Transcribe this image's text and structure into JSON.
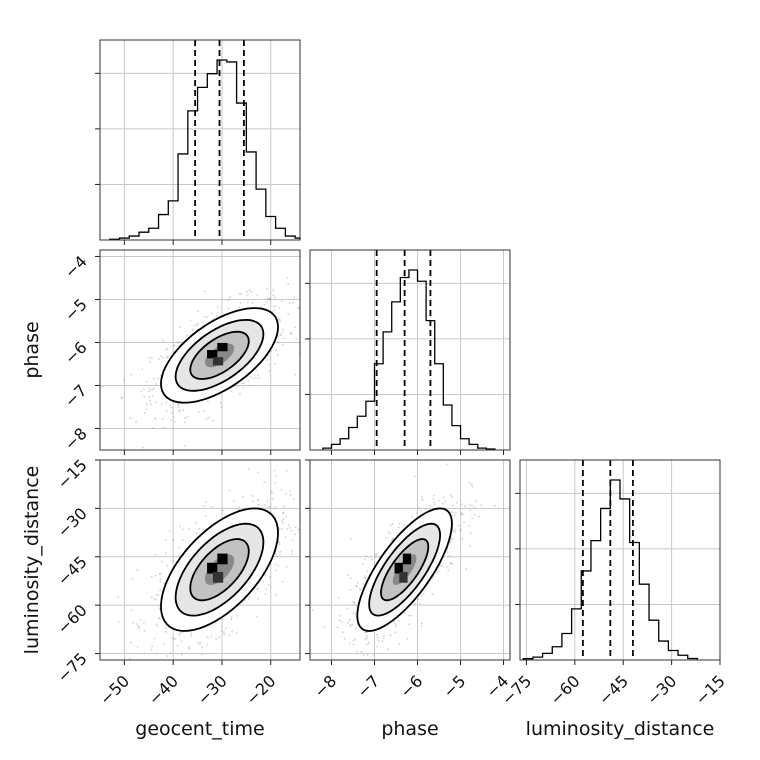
{
  "chart_data": {
    "type": "corner",
    "parameters": [
      "geocent_time",
      "phase",
      "luminosity_distance"
    ],
    "ranges": {
      "geocent_time": [
        -55,
        -14
      ],
      "phase": [
        -8.5,
        -3.85
      ],
      "luminosity_distance": [
        -77,
        -15
      ]
    },
    "ticks": {
      "geocent_time": [
        -50,
        -40,
        -30,
        -20
      ],
      "phase": [
        -8,
        -7,
        -6,
        -5,
        -4
      ],
      "luminosity_distance": [
        -75,
        -60,
        -45,
        -30,
        -15
      ]
    },
    "tick_labels": {
      "geocent_time": [
        "−50",
        "−40",
        "−30",
        "−20"
      ],
      "phase": [
        "−8",
        "−7",
        "−6",
        "−5",
        "−4"
      ],
      "luminosity_distance": [
        "−75",
        "−60",
        "−45",
        "−30",
        "−15"
      ]
    },
    "quantiles": {
      "geocent_time": [
        -35.5,
        -30.5,
        -25.5
      ],
      "phase": [
        -6.95,
        -6.3,
        -5.7
      ],
      "luminosity_distance": [
        -57.5,
        -49,
        -42
      ]
    },
    "histograms": {
      "geocent_time": {
        "bin_edges": [
          -53,
          -51,
          -49,
          -47,
          -45,
          -43,
          -41,
          -39,
          -37,
          -35,
          -33,
          -31,
          -29,
          -27,
          -25,
          -23,
          -21,
          -19,
          -17,
          -15,
          -14
        ],
        "counts": [
          0.4,
          1,
          2,
          4,
          6,
          13,
          20,
          44,
          66,
          78,
          85,
          92,
          91,
          70,
          45,
          26,
          12,
          6,
          2,
          1
        ]
      },
      "phase": {
        "bin_edges": [
          -8.2,
          -8.0,
          -7.8,
          -7.6,
          -7.4,
          -7.2,
          -7.0,
          -6.8,
          -6.6,
          -6.4,
          -6.2,
          -6.0,
          -5.8,
          -5.6,
          -5.4,
          -5.2,
          -5.0,
          -4.8,
          -4.6,
          -4.4,
          -4.2
        ],
        "counts": [
          1,
          3,
          6,
          12,
          18,
          26,
          46,
          63,
          79,
          92,
          96,
          90,
          69,
          46,
          24,
          13,
          6,
          3,
          1,
          0.5
        ]
      },
      "luminosity_distance": {
        "bin_edges": [
          -76,
          -73,
          -70,
          -67,
          -64,
          -61,
          -58,
          -55,
          -52,
          -49,
          -46,
          -43,
          -40,
          -37,
          -34,
          -31,
          -28,
          -25,
          -22
        ],
        "counts": [
          0.7,
          1.5,
          3.5,
          7,
          14,
          27,
          47,
          63,
          80,
          95,
          85,
          62,
          40,
          21,
          10,
          5,
          2.5,
          0.8
        ]
      }
    },
    "pairs": [
      {
        "x": "geocent_time",
        "y": "phase",
        "mean": [
          -30.5,
          -6.3
        ],
        "sd": [
          6.0,
          0.55
        ],
        "rho": 0.6
      },
      {
        "x": "geocent_time",
        "y": "luminosity_distance",
        "mean": [
          -30.5,
          -49
        ],
        "sd": [
          6.0,
          9.5
        ],
        "rho": 0.6
      },
      {
        "x": "phase",
        "y": "luminosity_distance",
        "mean": [
          -6.3,
          -49
        ],
        "sd": [
          0.55,
          9.5
        ],
        "rho": 0.75
      }
    ],
    "contour_levels_sigma": [
      0.5,
      1,
      1.5,
      2
    ],
    "grid": true
  },
  "labels": {
    "x_geocent_time": "geocent_time",
    "x_phase": "phase",
    "x_luminosity_distance": "luminosity_distance",
    "y_phase": "phase",
    "y_luminosity_distance": "luminosity_distance"
  }
}
